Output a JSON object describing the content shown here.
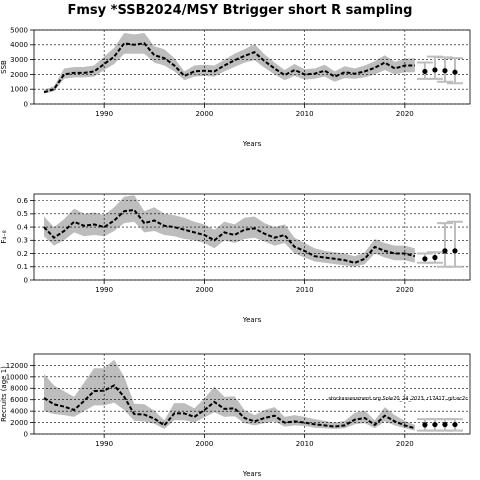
{
  "figure": {
    "title": "Fmsy  *SSB2024/MSY Btrigger short R sampling",
    "annotation": "stockassessment.org.Sole20_24_2023, r17417, git:ec2c"
  },
  "colors": {
    "band": "#bdbdbd",
    "line": "#000000",
    "grid": "#000000"
  },
  "chart_data": [
    {
      "type": "line",
      "ylabel": "SSB",
      "xlabel": "Years",
      "ylim": [
        0,
        5000
      ],
      "yticks": [
        0,
        1000,
        2000,
        3000,
        4000,
        5000
      ],
      "xticks": [
        1990,
        2000,
        2010,
        2020
      ],
      "xlim": [
        1983,
        2026.5
      ],
      "grid": true,
      "series": [
        {
          "x": [
            1984,
            1985,
            1986,
            1987,
            1988,
            1989,
            1990,
            1991,
            1992,
            1993,
            1994,
            1995,
            1996,
            1997,
            1998,
            1999,
            2000,
            2001,
            2002,
            2003,
            2004,
            2005,
            2006,
            2007,
            2008,
            2009,
            2010,
            2011,
            2012,
            2013,
            2014,
            2015,
            2016,
            2017,
            2018,
            2019,
            2020,
            2021
          ],
          "y": [
            800,
            1000,
            2000,
            2100,
            2100,
            2200,
            2700,
            3200,
            4100,
            4000,
            4100,
            3300,
            3100,
            2600,
            1900,
            2200,
            2250,
            2200,
            2600,
            2950,
            3250,
            3500,
            2900,
            2400,
            1950,
            2300,
            2000,
            2050,
            2250,
            1850,
            2150,
            2050,
            2200,
            2450,
            2800,
            2400,
            2600,
            2600
          ],
          "lower": [
            700,
            850,
            1700,
            1800,
            1800,
            1850,
            2300,
            2700,
            3400,
            3400,
            3400,
            2800,
            2600,
            2200,
            1600,
            1850,
            1900,
            1850,
            2200,
            2500,
            2800,
            2950,
            2450,
            2000,
            1600,
            1900,
            1650,
            1700,
            1850,
            1500,
            1750,
            1700,
            1800,
            2000,
            2300,
            2000,
            2150,
            2150
          ],
          "upper": [
            950,
            1200,
            2400,
            2500,
            2500,
            2600,
            3200,
            3800,
            4800,
            4700,
            4800,
            3900,
            3700,
            3100,
            2200,
            2600,
            2650,
            2600,
            3000,
            3400,
            3700,
            4050,
            3350,
            2800,
            2300,
            2700,
            2350,
            2400,
            2650,
            2200,
            2550,
            2400,
            2600,
            2900,
            3300,
            2850,
            3050,
            3100
          ]
        }
      ],
      "forecast": [
        {
          "x": 2022,
          "y": 2200,
          "lower": 1700,
          "upper": 2800
        },
        {
          "x": 2023,
          "y": 2300,
          "lower": 1700,
          "upper": 3200
        },
        {
          "x": 2024,
          "y": 2250,
          "lower": 1500,
          "upper": 3150
        },
        {
          "x": 2025,
          "y": 2150,
          "lower": 1400,
          "upper": 3100
        }
      ]
    },
    {
      "type": "line",
      "ylabel": "F₄₋₈",
      "xlabel": "Years",
      "ylim": [
        0,
        0.65
      ],
      "yticks": [
        0,
        0.1,
        0.2,
        0.3,
        0.4,
        0.5,
        0.6
      ],
      "xticks": [
        1990,
        2000,
        2010,
        2020
      ],
      "xlim": [
        1983,
        2026.5
      ],
      "grid": true,
      "series": [
        {
          "x": [
            1984,
            1985,
            1986,
            1987,
            1988,
            1989,
            1990,
            1991,
            1992,
            1993,
            1994,
            1995,
            1996,
            1997,
            1998,
            1999,
            2000,
            2001,
            2002,
            2003,
            2004,
            2005,
            2006,
            2007,
            2008,
            2009,
            2010,
            2011,
            2012,
            2013,
            2014,
            2015,
            2016,
            2017,
            2018,
            2019,
            2020,
            2021
          ],
          "y": [
            0.4,
            0.32,
            0.37,
            0.44,
            0.41,
            0.42,
            0.4,
            0.45,
            0.52,
            0.53,
            0.43,
            0.45,
            0.41,
            0.4,
            0.38,
            0.36,
            0.34,
            0.3,
            0.36,
            0.34,
            0.38,
            0.39,
            0.35,
            0.32,
            0.34,
            0.25,
            0.22,
            0.18,
            0.17,
            0.16,
            0.15,
            0.13,
            0.16,
            0.25,
            0.22,
            0.2,
            0.2,
            0.18
          ],
          "lower": [
            0.33,
            0.26,
            0.3,
            0.36,
            0.33,
            0.34,
            0.33,
            0.37,
            0.43,
            0.44,
            0.36,
            0.37,
            0.34,
            0.33,
            0.31,
            0.3,
            0.28,
            0.24,
            0.3,
            0.28,
            0.31,
            0.32,
            0.29,
            0.26,
            0.28,
            0.2,
            0.17,
            0.14,
            0.13,
            0.12,
            0.11,
            0.1,
            0.12,
            0.2,
            0.17,
            0.15,
            0.15,
            0.13
          ],
          "upper": [
            0.48,
            0.4,
            0.46,
            0.54,
            0.5,
            0.51,
            0.49,
            0.55,
            0.63,
            0.64,
            0.52,
            0.55,
            0.5,
            0.49,
            0.47,
            0.44,
            0.42,
            0.38,
            0.44,
            0.42,
            0.47,
            0.48,
            0.43,
            0.4,
            0.42,
            0.32,
            0.28,
            0.24,
            0.22,
            0.21,
            0.2,
            0.18,
            0.21,
            0.31,
            0.28,
            0.26,
            0.26,
            0.24
          ]
        }
      ],
      "forecast": [
        {
          "x": 2022,
          "y": 0.16,
          "lower": 0.13,
          "upper": 0.2
        },
        {
          "x": 2023,
          "y": 0.17,
          "lower": 0.13,
          "upper": 0.21
        },
        {
          "x": 2024,
          "y": 0.22,
          "lower": 0.1,
          "upper": 0.43
        },
        {
          "x": 2025,
          "y": 0.22,
          "lower": 0.1,
          "upper": 0.44
        }
      ]
    },
    {
      "type": "line",
      "ylabel": "Recruits (age 1)",
      "xlabel": "Years",
      "ylim": [
        0,
        14000
      ],
      "yticks": [
        0,
        2000,
        4000,
        6000,
        8000,
        10000,
        12000
      ],
      "xticks": [
        1990,
        2000,
        2010,
        2020
      ],
      "xlim": [
        1983,
        2026.5
      ],
      "grid": true,
      "series": [
        {
          "x": [
            1984,
            1985,
            1986,
            1987,
            1988,
            1989,
            1990,
            1991,
            1992,
            1993,
            1994,
            1995,
            1996,
            1997,
            1998,
            1999,
            2000,
            2001,
            2002,
            2003,
            2004,
            2005,
            2006,
            2007,
            2008,
            2009,
            2010,
            2011,
            2012,
            2013,
            2014,
            2015,
            2016,
            2017,
            2018,
            2019,
            2020,
            2021
          ],
          "y": [
            6300,
            5200,
            4800,
            4200,
            5800,
            7500,
            7600,
            8500,
            6500,
            3500,
            3400,
            2700,
            1500,
            3600,
            3600,
            3000,
            4200,
            5600,
            4400,
            4500,
            2800,
            2200,
            2800,
            3200,
            2000,
            2200,
            2000,
            1700,
            1500,
            1300,
            1500,
            2500,
            2800,
            1600,
            3200,
            2200,
            1500,
            1000
          ],
          "lower": [
            4000,
            3500,
            3300,
            3000,
            4000,
            5000,
            5000,
            5500,
            4200,
            2300,
            2200,
            1800,
            900,
            2400,
            2400,
            2000,
            2900,
            3800,
            3000,
            3100,
            1900,
            1500,
            1900,
            2200,
            1300,
            1500,
            1400,
            1100,
            1000,
            900,
            1000,
            1700,
            1900,
            1000,
            2200,
            1500,
            1000,
            600
          ],
          "upper": [
            10500,
            8500,
            7500,
            6500,
            9000,
            11500,
            11500,
            13000,
            10000,
            5300,
            5200,
            4100,
            2400,
            5400,
            5400,
            4500,
            6200,
            8300,
            6500,
            6600,
            4200,
            3300,
            4200,
            4700,
            3000,
            3300,
            3000,
            2600,
            2300,
            2000,
            2300,
            3700,
            4100,
            2400,
            4700,
            3300,
            2300,
            1600
          ]
        }
      ],
      "forecast": [
        {
          "x": 2022,
          "y": 1600,
          "lower": 600,
          "upper": 2600
        },
        {
          "x": 2023,
          "y": 1650,
          "lower": 600,
          "upper": 2600
        },
        {
          "x": 2024,
          "y": 1650,
          "lower": 600,
          "upper": 2600
        },
        {
          "x": 2025,
          "y": 1650,
          "lower": 600,
          "upper": 2600
        }
      ]
    }
  ]
}
